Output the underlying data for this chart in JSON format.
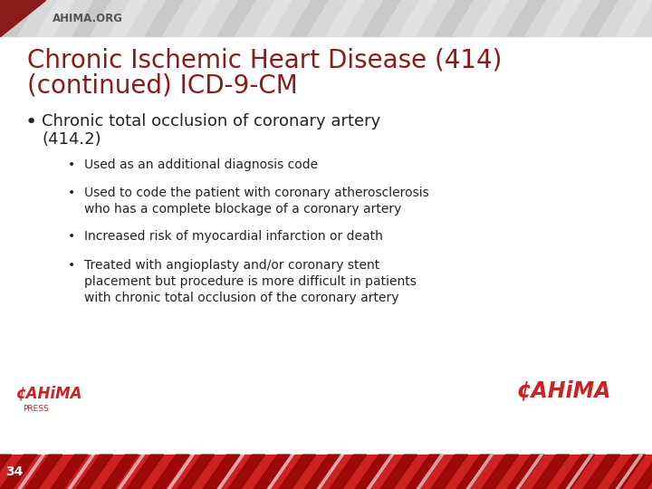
{
  "title_line1": "Chronic Ischemic Heart Disease (414)",
  "title_line2": "(continued) ICD-9-CM",
  "title_color": "#8B1A1A",
  "bg_color": "#FFFFFF",
  "footer_red": "#CC2222",
  "footer_dark_red": "#8B0000",
  "footer_stripe_light": "#DD3333",
  "footer_stripe_white": "#EE6666",
  "bullet1_color": "#222222",
  "sub_bullet_color": "#222222",
  "ahima_org_text": "AHIMA.ORG",
  "page_number": "34",
  "header_gray": "#D8D8D8",
  "header_stripe1": "#C8C8C8",
  "header_stripe2": "#E4E4E4",
  "red_triangle": "#8B1A1A"
}
